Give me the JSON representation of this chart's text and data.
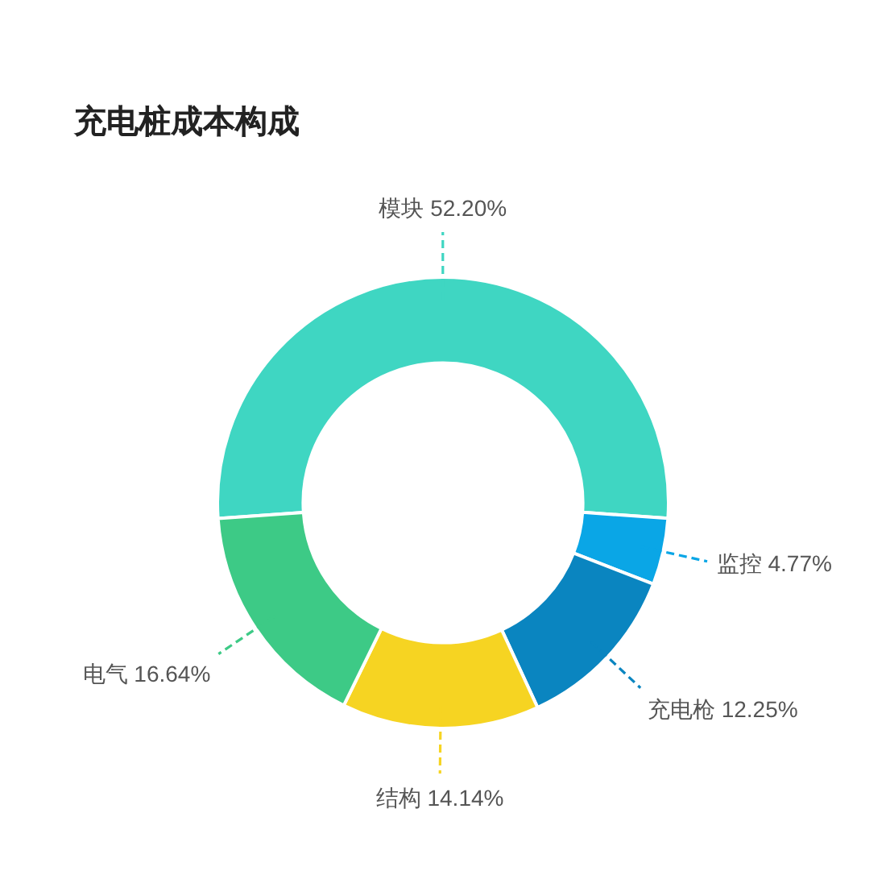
{
  "chart_data": {
    "type": "donut",
    "title": "充电桩成本构成",
    "categories": [
      "模块",
      "监控",
      "充电枪",
      "结构",
      "电气"
    ],
    "values": [
      52.2,
      4.77,
      12.25,
      14.14,
      16.64
    ],
    "value_labels": [
      "52.20%",
      "4.77%",
      "12.25%",
      "14.14%",
      "16.64%"
    ],
    "colors": [
      "#3fd6c2",
      "#0aa6e6",
      "#0a85c0",
      "#f6d422",
      "#3dca86"
    ]
  }
}
